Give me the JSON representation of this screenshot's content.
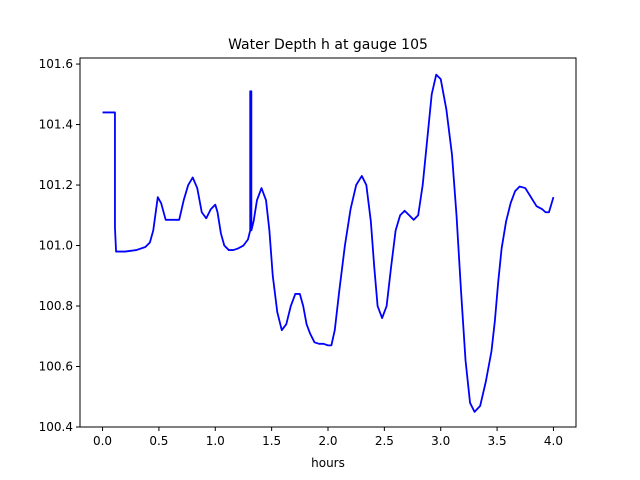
{
  "chart_data": {
    "type": "line",
    "title": "Water Depth h at gauge 105",
    "xlabel": "hours",
    "ylabel": "",
    "xlim": [
      -0.2,
      4.2
    ],
    "ylim": [
      100.4,
      101.62
    ],
    "xticks": [
      0.0,
      0.5,
      1.0,
      1.5,
      2.0,
      2.5,
      3.0,
      3.5,
      4.0
    ],
    "xtick_labels": [
      "0.0",
      "0.5",
      "1.0",
      "1.5",
      "2.0",
      "2.5",
      "3.0",
      "3.5",
      "4.0"
    ],
    "yticks": [
      100.4,
      100.6,
      100.8,
      101.0,
      101.2,
      101.4,
      101.6
    ],
    "ytick_labels": [
      "100.4",
      "100.6",
      "100.8",
      "101.0",
      "101.2",
      "101.4",
      "101.6"
    ],
    "grid": false,
    "series": [
      {
        "color": "#0000ff",
        "x": [
          0.0,
          0.11,
          0.11,
          0.12,
          0.2,
          0.3,
          0.38,
          0.42,
          0.45,
          0.49,
          0.52,
          0.56,
          0.6,
          0.64,
          0.68,
          0.72,
          0.76,
          0.8,
          0.84,
          0.88,
          0.92,
          0.96,
          1.0,
          1.02,
          1.05,
          1.08,
          1.12,
          1.16,
          1.2,
          1.25,
          1.29,
          1.31,
          1.31,
          1.32,
          1.32,
          1.34,
          1.37,
          1.41,
          1.45,
          1.48,
          1.51,
          1.55,
          1.59,
          1.63,
          1.67,
          1.71,
          1.75,
          1.78,
          1.81,
          1.84,
          1.88,
          1.92,
          1.96,
          2.0,
          2.03,
          2.06,
          2.1,
          2.15,
          2.2,
          2.25,
          2.3,
          2.34,
          2.38,
          2.41,
          2.44,
          2.48,
          2.52,
          2.56,
          2.6,
          2.64,
          2.68,
          2.72,
          2.76,
          2.8,
          2.84,
          2.88,
          2.92,
          2.96,
          3.0,
          3.05,
          3.1,
          3.14,
          3.18,
          3.22,
          3.26,
          3.3,
          3.35,
          3.4,
          3.45,
          3.48,
          3.51,
          3.54,
          3.58,
          3.62,
          3.66,
          3.7,
          3.75,
          3.8,
          3.85,
          3.9,
          3.93,
          3.96,
          4.0
        ],
        "y": [
          101.44,
          101.44,
          101.06,
          100.98,
          100.98,
          100.985,
          100.995,
          101.01,
          101.05,
          101.16,
          101.14,
          101.085,
          101.085,
          101.085,
          101.085,
          101.15,
          101.2,
          101.225,
          101.19,
          101.11,
          101.09,
          101.12,
          101.135,
          101.11,
          101.04,
          101.0,
          100.985,
          100.985,
          100.99,
          101.0,
          101.02,
          101.05,
          101.51,
          101.51,
          101.05,
          101.08,
          101.15,
          101.19,
          101.15,
          101.05,
          100.9,
          100.78,
          100.72,
          100.74,
          100.8,
          100.84,
          100.84,
          100.8,
          100.74,
          100.71,
          100.68,
          100.675,
          100.675,
          100.67,
          100.67,
          100.72,
          100.85,
          101.0,
          101.12,
          101.2,
          101.23,
          101.2,
          101.08,
          100.93,
          100.8,
          100.76,
          100.8,
          100.93,
          101.05,
          101.1,
          101.115,
          101.1,
          101.085,
          101.1,
          101.2,
          101.35,
          101.5,
          101.565,
          101.55,
          101.45,
          101.3,
          101.1,
          100.85,
          100.62,
          100.48,
          100.45,
          100.47,
          100.55,
          100.65,
          100.75,
          100.88,
          100.99,
          101.08,
          101.14,
          101.18,
          101.195,
          101.19,
          101.16,
          101.13,
          101.12,
          101.11,
          101.11,
          101.16
        ]
      }
    ]
  }
}
